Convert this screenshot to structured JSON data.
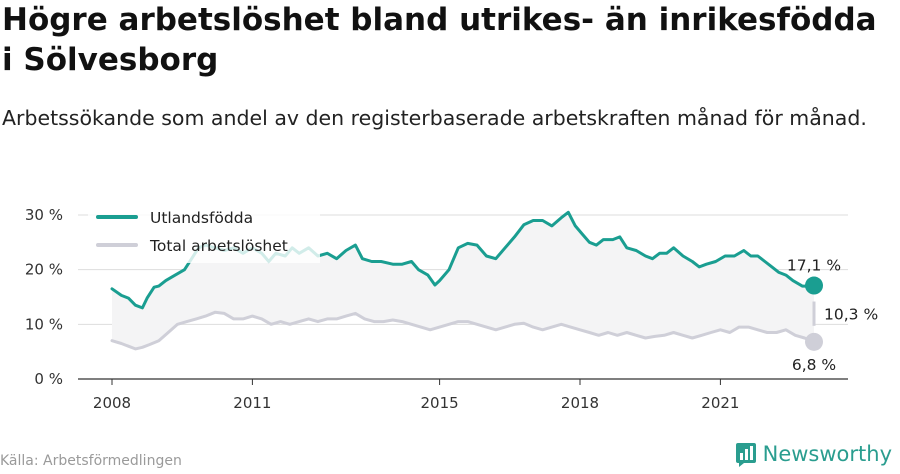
{
  "title": "Högre arbetslöshet bland utrikes- än inrikesfödda i Sölvesborg",
  "subtitle": "Arbetssökande som andel av den registerbaserade arbetskraften månad för månad.",
  "source": "Källa: Arbetsförmedlingen",
  "brand": "Newsworthy",
  "colors": {
    "accent": "#1a9e91",
    "total": "#cfcfd8",
    "band": "#f4f4f5",
    "grid": "#dddddd",
    "brand": "#2a9d8f"
  },
  "chart_data": {
    "type": "line",
    "ylim": [
      0,
      30
    ],
    "y_ticks": [
      {
        "value": 0,
        "label": "0 %"
      },
      {
        "value": 10,
        "label": "10 %"
      },
      {
        "value": 20,
        "label": "20 %"
      },
      {
        "value": 30,
        "label": "30 %"
      }
    ],
    "x_ticks": [
      {
        "value": 2008,
        "label": "2008"
      },
      {
        "value": 2011,
        "label": "2011"
      },
      {
        "value": 2015,
        "label": "2015"
      },
      {
        "value": 2018,
        "label": "2018"
      },
      {
        "value": 2021,
        "label": "2021"
      }
    ],
    "legend": {
      "placement": "top-left"
    },
    "series": [
      {
        "name": "Utlandsfödda",
        "end_label": "17,1 %",
        "points": [
          [
            2008.0,
            16.5
          ],
          [
            2008.2,
            15.3
          ],
          [
            2008.35,
            14.8
          ],
          [
            2008.5,
            13.5
          ],
          [
            2008.65,
            13.0
          ],
          [
            2008.75,
            14.8
          ],
          [
            2008.9,
            16.8
          ],
          [
            2009.0,
            17.0
          ],
          [
            2009.15,
            18.0
          ],
          [
            2009.35,
            19.0
          ],
          [
            2009.55,
            20.0
          ],
          [
            2009.7,
            22.0
          ],
          [
            2009.85,
            24.0
          ],
          [
            2010.0,
            24.5
          ],
          [
            2010.2,
            24.0
          ],
          [
            2010.4,
            23.5
          ],
          [
            2010.6,
            24.0
          ],
          [
            2010.8,
            23.0
          ],
          [
            2011.0,
            24.0
          ],
          [
            2011.2,
            23.0
          ],
          [
            2011.35,
            21.5
          ],
          [
            2011.5,
            23.0
          ],
          [
            2011.7,
            22.5
          ],
          [
            2011.85,
            24.0
          ],
          [
            2012.0,
            23.0
          ],
          [
            2012.2,
            24.0
          ],
          [
            2012.4,
            22.5
          ],
          [
            2012.6,
            23.0
          ],
          [
            2012.8,
            22.0
          ],
          [
            2013.0,
            23.5
          ],
          [
            2013.2,
            24.5
          ],
          [
            2013.35,
            22.0
          ],
          [
            2013.55,
            21.5
          ],
          [
            2013.75,
            21.5
          ],
          [
            2014.0,
            21.0
          ],
          [
            2014.2,
            21.0
          ],
          [
            2014.4,
            21.5
          ],
          [
            2014.55,
            20.0
          ],
          [
            2014.75,
            19.0
          ],
          [
            2014.9,
            17.2
          ],
          [
            2015.0,
            18.0
          ],
          [
            2015.2,
            20.0
          ],
          [
            2015.4,
            24.0
          ],
          [
            2015.6,
            24.8
          ],
          [
            2015.8,
            24.5
          ],
          [
            2016.0,
            22.5
          ],
          [
            2016.2,
            22.0
          ],
          [
            2016.4,
            24.0
          ],
          [
            2016.6,
            26.0
          ],
          [
            2016.8,
            28.2
          ],
          [
            2017.0,
            29.0
          ],
          [
            2017.2,
            29.0
          ],
          [
            2017.4,
            28.0
          ],
          [
            2017.6,
            29.5
          ],
          [
            2017.75,
            30.5
          ],
          [
            2017.9,
            28.0
          ],
          [
            2018.05,
            26.5
          ],
          [
            2018.2,
            25.0
          ],
          [
            2018.35,
            24.5
          ],
          [
            2018.5,
            25.5
          ],
          [
            2018.7,
            25.5
          ],
          [
            2018.85,
            26.0
          ],
          [
            2019.0,
            24.0
          ],
          [
            2019.2,
            23.5
          ],
          [
            2019.4,
            22.5
          ],
          [
            2019.55,
            22.0
          ],
          [
            2019.7,
            23.0
          ],
          [
            2019.85,
            23.0
          ],
          [
            2020.0,
            24.0
          ],
          [
            2020.2,
            22.5
          ],
          [
            2020.4,
            21.5
          ],
          [
            2020.55,
            20.5
          ],
          [
            2020.7,
            21.0
          ],
          [
            2020.9,
            21.5
          ],
          [
            2021.1,
            22.5
          ],
          [
            2021.3,
            22.5
          ],
          [
            2021.5,
            23.5
          ],
          [
            2021.65,
            22.5
          ],
          [
            2021.8,
            22.5
          ],
          [
            2021.95,
            21.5
          ],
          [
            2022.1,
            20.5
          ],
          [
            2022.25,
            19.5
          ],
          [
            2022.4,
            19.0
          ],
          [
            2022.55,
            18.0
          ],
          [
            2022.65,
            17.5
          ],
          [
            2022.75,
            17.0
          ],
          [
            2022.85,
            17.0
          ],
          [
            2023.0,
            17.1
          ]
        ]
      },
      {
        "name": "Total arbetslöshet",
        "end_label": "6,8 %",
        "points": [
          [
            2008.0,
            7.0
          ],
          [
            2008.2,
            6.5
          ],
          [
            2008.35,
            6.0
          ],
          [
            2008.5,
            5.5
          ],
          [
            2008.65,
            5.8
          ],
          [
            2008.8,
            6.3
          ],
          [
            2009.0,
            7.0
          ],
          [
            2009.2,
            8.5
          ],
          [
            2009.4,
            10.0
          ],
          [
            2009.6,
            10.5
          ],
          [
            2009.8,
            11.0
          ],
          [
            2010.0,
            11.5
          ],
          [
            2010.2,
            12.2
          ],
          [
            2010.4,
            12.0
          ],
          [
            2010.6,
            11.0
          ],
          [
            2010.8,
            11.0
          ],
          [
            2011.0,
            11.5
          ],
          [
            2011.2,
            11.0
          ],
          [
            2011.4,
            10.0
          ],
          [
            2011.6,
            10.5
          ],
          [
            2011.8,
            10.0
          ],
          [
            2012.0,
            10.5
          ],
          [
            2012.2,
            11.0
          ],
          [
            2012.4,
            10.5
          ],
          [
            2012.6,
            11.0
          ],
          [
            2012.8,
            11.0
          ],
          [
            2013.0,
            11.5
          ],
          [
            2013.2,
            12.0
          ],
          [
            2013.4,
            11.0
          ],
          [
            2013.6,
            10.5
          ],
          [
            2013.8,
            10.5
          ],
          [
            2014.0,
            10.8
          ],
          [
            2014.2,
            10.5
          ],
          [
            2014.4,
            10.0
          ],
          [
            2014.6,
            9.5
          ],
          [
            2014.8,
            9.0
          ],
          [
            2015.0,
            9.5
          ],
          [
            2015.2,
            10.0
          ],
          [
            2015.4,
            10.5
          ],
          [
            2015.6,
            10.5
          ],
          [
            2015.8,
            10.0
          ],
          [
            2016.0,
            9.5
          ],
          [
            2016.2,
            9.0
          ],
          [
            2016.4,
            9.5
          ],
          [
            2016.6,
            10.0
          ],
          [
            2016.8,
            10.2
          ],
          [
            2017.0,
            9.5
          ],
          [
            2017.2,
            9.0
          ],
          [
            2017.4,
            9.5
          ],
          [
            2017.6,
            10.0
          ],
          [
            2017.8,
            9.5
          ],
          [
            2018.0,
            9.0
          ],
          [
            2018.2,
            8.5
          ],
          [
            2018.4,
            8.0
          ],
          [
            2018.6,
            8.5
          ],
          [
            2018.8,
            8.0
          ],
          [
            2019.0,
            8.5
          ],
          [
            2019.2,
            8.0
          ],
          [
            2019.4,
            7.5
          ],
          [
            2019.6,
            7.8
          ],
          [
            2019.8,
            8.0
          ],
          [
            2020.0,
            8.5
          ],
          [
            2020.2,
            8.0
          ],
          [
            2020.4,
            7.5
          ],
          [
            2020.6,
            8.0
          ],
          [
            2020.8,
            8.5
          ],
          [
            2021.0,
            9.0
          ],
          [
            2021.2,
            8.5
          ],
          [
            2021.4,
            9.5
          ],
          [
            2021.6,
            9.5
          ],
          [
            2021.8,
            9.0
          ],
          [
            2022.0,
            8.5
          ],
          [
            2022.2,
            8.5
          ],
          [
            2022.4,
            9.0
          ],
          [
            2022.6,
            8.0
          ],
          [
            2022.8,
            7.5
          ],
          [
            2023.0,
            6.8
          ]
        ]
      }
    ],
    "difference_label": "10,3 %"
  }
}
